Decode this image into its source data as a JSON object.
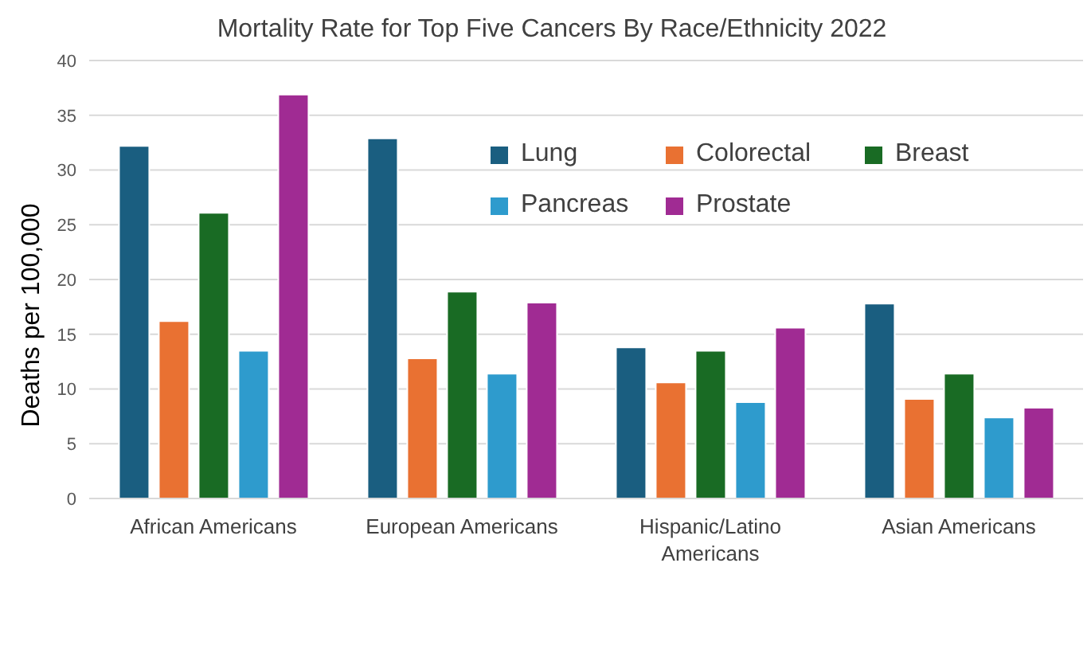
{
  "chart_data": {
    "type": "bar",
    "title": "Mortality Rate for Top Five Cancers By Race/Ethnicity 2022",
    "ylabel": "Deaths per 100,000",
    "categories": [
      "African Americans",
      "European Americans",
      "Hispanic/Latino Americans",
      "Asian Americans"
    ],
    "series": [
      {
        "name": "Lung",
        "color": "#1a5e80",
        "values": [
          32.2,
          32.9,
          13.8,
          17.8
        ]
      },
      {
        "name": "Colorectal",
        "color": "#e97132",
        "values": [
          16.2,
          12.8,
          10.6,
          9.1
        ]
      },
      {
        "name": "Breast",
        "color": "#196b24",
        "values": [
          26.1,
          18.9,
          13.5,
          11.4
        ]
      },
      {
        "name": "Pancreas",
        "color": "#2e9bcd",
        "values": [
          13.5,
          11.4,
          8.8,
          7.4
        ]
      },
      {
        "name": "Prostate",
        "color": "#a02b93",
        "values": [
          36.9,
          17.9,
          15.6,
          8.3
        ]
      }
    ],
    "ylim": [
      0,
      40
    ],
    "yticks": [
      0,
      5,
      10,
      15,
      20,
      25,
      30,
      35,
      40
    ],
    "grid": "y",
    "legend": "top"
  }
}
